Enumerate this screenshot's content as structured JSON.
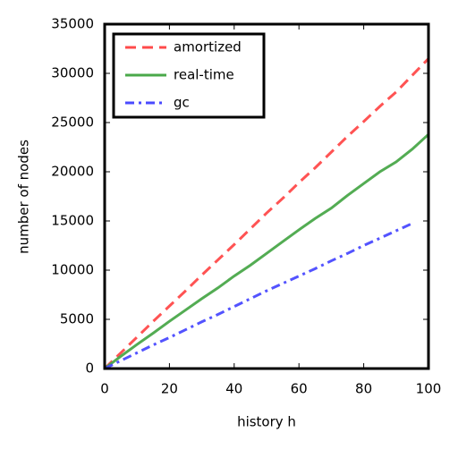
{
  "chart_data": {
    "type": "line",
    "xlabel": "history h",
    "ylabel": "number of nodes",
    "x": [
      0,
      5,
      10,
      15,
      20,
      25,
      30,
      35,
      40,
      45,
      50,
      55,
      60,
      65,
      70,
      75,
      80,
      85,
      90,
      95,
      100
    ],
    "series": [
      {
        "name": "amortized",
        "color": "#ff4a4a",
        "dash": "12,7",
        "values": [
          0,
          1600,
          3200,
          4800,
          6350,
          7900,
          9500,
          11050,
          12600,
          14200,
          15800,
          17300,
          18900,
          20400,
          22000,
          23600,
          25100,
          26650,
          28100,
          29800,
          31500
        ]
      },
      {
        "name": "real-time",
        "color": "#4aa84a",
        "dash": "",
        "values": [
          0,
          1250,
          2450,
          3600,
          4800,
          5950,
          7100,
          8200,
          9400,
          10500,
          11700,
          12900,
          14100,
          15250,
          16300,
          17600,
          18800,
          20000,
          21000,
          22300,
          23800
        ]
      },
      {
        "name": "gc",
        "color": "#4a4aff",
        "dash": "10,5,3,5",
        "values": [
          0,
          800,
          1600,
          2400,
          3150,
          3950,
          4750,
          5500,
          6300,
          7100,
          7900,
          8650,
          9400,
          10150,
          10950,
          11700,
          12500,
          13250,
          14000,
          14750,
          null
        ]
      }
    ],
    "xlim": [
      0,
      100
    ],
    "xticks": [
      0,
      20,
      40,
      60,
      80,
      100
    ],
    "ylim": [
      0,
      35000
    ],
    "yticks": [
      0,
      5000,
      10000,
      15000,
      20000,
      25000,
      30000,
      35000
    ],
    "legend": "upper left"
  }
}
